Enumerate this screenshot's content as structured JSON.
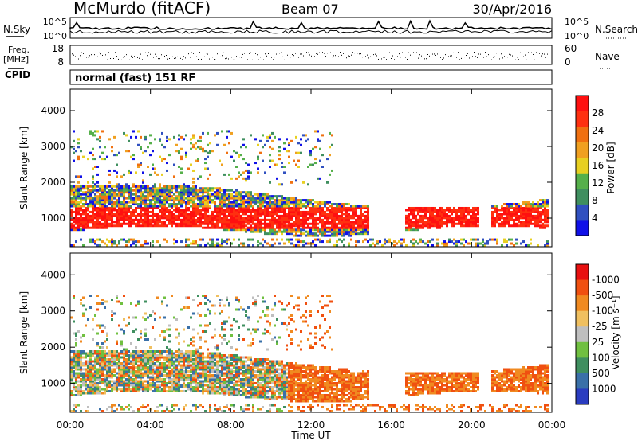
{
  "header": {
    "station": "McMurdo (fitACF)",
    "beam": "Beam 07",
    "date": "30/Apr/2016"
  },
  "aux": {
    "nsky_label": "N.Sky",
    "nsearch_label": "N.Search",
    "nsky_ticks": [
      "10^5",
      "10^0"
    ],
    "nsearch_ticks": [
      "10^5",
      "10^0"
    ],
    "freq_label": "Freq.",
    "freq_unit": "[MHz]",
    "freq_ticks": [
      "18",
      "8"
    ],
    "nave_label": "Nave",
    "nave_ticks": [
      "60",
      "0"
    ],
    "cpid_label": "CPID",
    "cpid_text": "normal (fast) 151 RF"
  },
  "chart_data": [
    {
      "type": "heatmap",
      "title": "",
      "ylabel": "Slant Range [km]",
      "xlabel": "",
      "y_ticks": [
        1000,
        2000,
        3000,
        4000
      ],
      "ylim": [
        200,
        4600
      ],
      "x_ticks": [
        "00:00",
        "04:00",
        "08:00",
        "12:00",
        "16:00",
        "20:00",
        "00:00"
      ],
      "colorbar": {
        "label": "Power [dB]",
        "ticks": [
          4,
          8,
          12,
          16,
          20,
          24,
          28
        ],
        "colors": [
          "#1010e8",
          "#3050c0",
          "#3f8f5f",
          "#55b04a",
          "#e8d020",
          "#f0a020",
          "#f07010",
          "#ff3010",
          "#ff1010"
        ]
      }
    },
    {
      "type": "heatmap",
      "title": "",
      "ylabel": "Slant Range [km]",
      "xlabel": "Time UT",
      "y_ticks": [
        1000,
        2000,
        3000,
        4000
      ],
      "ylim": [
        200,
        4600
      ],
      "x_ticks": [
        "00:00",
        "04:00",
        "08:00",
        "12:00",
        "16:00",
        "20:00",
        "00:00"
      ],
      "colorbar": {
        "label": "Velocity [m s⁻¹]",
        "ticks": [
          1000,
          500,
          100,
          25,
          -25,
          -100,
          -500,
          -1000
        ],
        "colors": [
          "#2a3cc0",
          "#3a70a8",
          "#3f8f5f",
          "#70c040",
          "#bfbfbf",
          "#f0c060",
          "#f08a20",
          "#f05010",
          "#e81010"
        ]
      }
    }
  ]
}
